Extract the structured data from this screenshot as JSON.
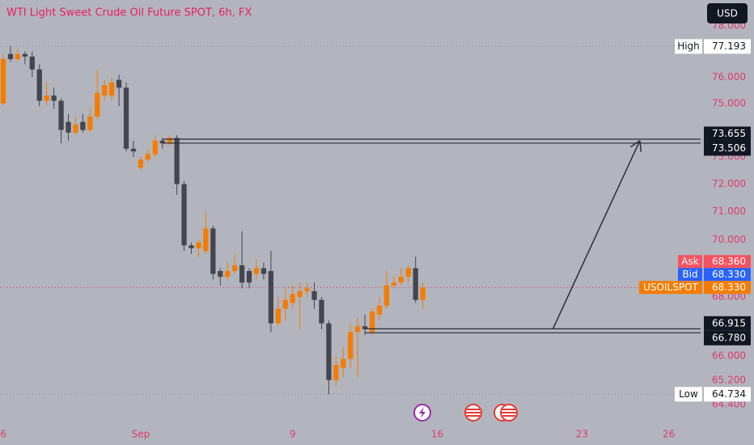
{
  "chart_data": {
    "type": "candlestick",
    "title": "WTI Light Sweet Crude Oil Future SPOT, 6h, FX",
    "currency": "USD",
    "log_scale": true,
    "up_color": "#f57c00",
    "down_color": "#434651",
    "ylim": [
      63.82,
      79.03
    ],
    "yticks": [
      {
        "value": 78,
        "label": "78.000"
      },
      {
        "value": 76,
        "label": "76.000"
      },
      {
        "value": 75,
        "label": "75.000"
      },
      {
        "value": 73,
        "label": "73.000"
      },
      {
        "value": 72,
        "label": "72.000"
      },
      {
        "value": 71,
        "label": "71.000"
      },
      {
        "value": 70,
        "label": "70.000"
      },
      {
        "value": 68,
        "label": "68.000"
      },
      {
        "value": 66,
        "label": "66.000"
      },
      {
        "value": 65.2,
        "label": "65.200"
      },
      {
        "value": 64.4,
        "label": "64.400"
      }
    ],
    "xlim": [
      -0.45,
      96.4
    ],
    "xticks": [
      {
        "value": 0,
        "label": "6"
      },
      {
        "value": 19,
        "label": "Sep"
      },
      {
        "value": 40,
        "label": "9"
      },
      {
        "value": 60,
        "label": "16"
      },
      {
        "value": 80,
        "label": "23"
      },
      {
        "value": 92,
        "label": "26"
      }
    ],
    "open": [
      75.0,
      76.9,
      76.7,
      76.9,
      76.8,
      76.3,
      75.1,
      75.3,
      75.1,
      74.3,
      73.9,
      74.3,
      74.0,
      74.5,
      75.3,
      75.3,
      75.9,
      75.6,
      73.3,
      72.6,
      72.9,
      73.1,
      73.6,
      73.5,
      73.7,
      72.0,
      69.8,
      69.7,
      69.6,
      70.4,
      68.9,
      68.7,
      68.9,
      69.1,
      68.9,
      68.8,
      69.0,
      68.9,
      67.1,
      67.6,
      67.8,
      68.0,
      68.2,
      68.2,
      67.9,
      67.1,
      65.2,
      65.6,
      65.9,
      66.8,
      67.0,
      66.8,
      67.4,
      67.7,
      68.4,
      68.5,
      68.7,
      69.0,
      67.9
    ],
    "high": [
      76.9,
      77.2,
      77.1,
      77.0,
      77.0,
      76.5,
      75.8,
      75.6,
      75.2,
      74.6,
      74.5,
      74.6,
      74.8,
      76.3,
      75.9,
      76.0,
      76.1,
      75.8,
      73.6,
      73.0,
      73.3,
      73.8,
      73.7,
      73.8,
      73.8,
      72.1,
      69.9,
      70.0,
      71.0,
      70.5,
      69.0,
      69.2,
      69.5,
      70.3,
      69.0,
      69.3,
      69.2,
      69.6,
      68.0,
      68.3,
      68.4,
      68.5,
      68.5,
      68.5,
      68.0,
      67.2,
      66.0,
      66.3,
      67.1,
      67.3,
      67.4,
      67.6,
      68.0,
      68.9,
      68.7,
      69.0,
      69.1,
      69.4,
      68.5
    ],
    "low": [
      74.9,
      76.6,
      76.6,
      76.5,
      76.0,
      74.9,
      74.9,
      74.8,
      73.5,
      73.6,
      73.8,
      73.9,
      73.9,
      74.4,
      75.1,
      75.1,
      74.9,
      73.2,
      73.0,
      72.5,
      72.8,
      73.0,
      73.3,
      73.4,
      71.6,
      69.6,
      69.5,
      69.4,
      69.5,
      68.6,
      68.4,
      68.6,
      68.8,
      68.3,
      68.3,
      68.6,
      68.6,
      66.8,
      67.0,
      67.2,
      67.6,
      66.9,
      68.0,
      67.6,
      66.9,
      64.734,
      65.0,
      65.3,
      65.6,
      65.3,
      66.7,
      66.7,
      67.2,
      67.6,
      68.3,
      68.4,
      68.5,
      67.8,
      67.6
    ],
    "close": [
      76.7,
      76.7,
      76.9,
      76.8,
      76.3,
      75.1,
      75.3,
      75.1,
      74.0,
      73.9,
      74.2,
      74.0,
      74.5,
      75.4,
      75.7,
      75.8,
      75.6,
      73.3,
      73.2,
      72.9,
      73.1,
      73.6,
      73.5,
      73.7,
      72.0,
      69.8,
      69.7,
      69.9,
      70.4,
      68.8,
      68.7,
      68.9,
      69.1,
      68.5,
      68.5,
      69.0,
      68.8,
      67.1,
      67.6,
      67.9,
      68.1,
      68.2,
      68.3,
      67.9,
      67.1,
      65.2,
      65.7,
      65.9,
      66.8,
      67.0,
      66.9,
      67.5,
      67.7,
      68.4,
      68.5,
      68.7,
      69.0,
      67.9,
      68.33
    ],
    "levels": [
      {
        "value": 73.655,
        "label": "73.655",
        "start": 22
      },
      {
        "value": 73.506,
        "label": "73.506",
        "start": 22
      },
      {
        "value": 66.915,
        "label": "66.915",
        "start": 50
      },
      {
        "value": 66.78,
        "label": "66.780",
        "start": 50
      }
    ],
    "arrow": {
      "from": [
        76,
        66.92
      ],
      "to": [
        88,
        73.6
      ]
    },
    "high_marker": {
      "name": "High",
      "value": 77.193,
      "label": "77.193"
    },
    "low_marker": {
      "name": "Low",
      "value": 64.734,
      "label": "64.734"
    },
    "ask": {
      "name": "Ask",
      "value": 68.36,
      "label": "68.360",
      "color": "#f7525f"
    },
    "bid": {
      "name": "Bid",
      "value": 68.33,
      "label": "68.330",
      "color": "#2962ff"
    },
    "last": {
      "name": "USOILSPOT",
      "value": 68.33,
      "label": "68.330",
      "color": "#f57c00"
    }
  }
}
